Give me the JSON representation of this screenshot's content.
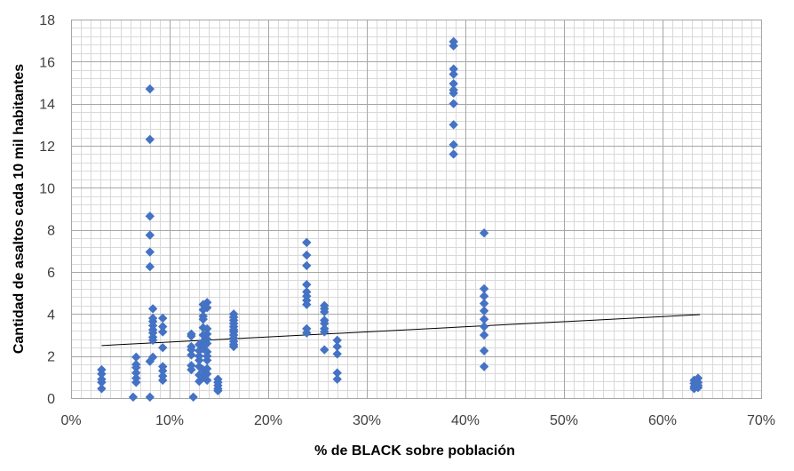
{
  "chart_data": {
    "type": "scatter",
    "title": "",
    "xlabel": "% de BLACK sobre población",
    "ylabel": "Cantidad de asaltos cada 10 mil habitantes",
    "xlim": [
      0,
      0.7
    ],
    "ylim": [
      0,
      18
    ],
    "x_ticks": [
      0,
      0.1,
      0.2,
      0.3,
      0.4,
      0.5,
      0.6,
      0.7
    ],
    "x_tick_labels": [
      "0%",
      "10%",
      "20%",
      "30%",
      "40%",
      "50%",
      "60%",
      "70%"
    ],
    "y_ticks": [
      0,
      2,
      4,
      6,
      8,
      10,
      12,
      14,
      16,
      18
    ],
    "y_tick_labels": [
      "0",
      "2",
      "4",
      "6",
      "8",
      "10",
      "12",
      "14",
      "16",
      "18"
    ],
    "grid": true,
    "legend": "none",
    "series": [
      {
        "marker": "diamond",
        "color": "#4472C4",
        "points": [
          [
            0.031,
            1.35
          ],
          [
            0.031,
            1.15
          ],
          [
            0.031,
            0.9
          ],
          [
            0.031,
            0.75
          ],
          [
            0.031,
            0.45
          ],
          [
            0.063,
            0.05
          ],
          [
            0.066,
            1.95
          ],
          [
            0.066,
            1.6
          ],
          [
            0.066,
            1.45
          ],
          [
            0.066,
            1.2
          ],
          [
            0.066,
            0.95
          ],
          [
            0.066,
            0.75
          ],
          [
            0.08,
            14.7
          ],
          [
            0.08,
            12.3
          ],
          [
            0.08,
            8.65
          ],
          [
            0.08,
            7.75
          ],
          [
            0.08,
            6.95
          ],
          [
            0.08,
            6.25
          ],
          [
            0.08,
            1.75
          ],
          [
            0.08,
            0.05
          ],
          [
            0.083,
            4.25
          ],
          [
            0.083,
            3.8
          ],
          [
            0.083,
            3.65
          ],
          [
            0.083,
            3.45
          ],
          [
            0.083,
            3.25
          ],
          [
            0.083,
            3.1
          ],
          [
            0.083,
            2.9
          ],
          [
            0.083,
            2.75
          ],
          [
            0.083,
            1.95
          ],
          [
            0.093,
            3.8
          ],
          [
            0.093,
            3.4
          ],
          [
            0.093,
            3.15
          ],
          [
            0.093,
            2.4
          ],
          [
            0.093,
            1.5
          ],
          [
            0.093,
            1.3
          ],
          [
            0.093,
            1.05
          ],
          [
            0.093,
            0.85
          ],
          [
            0.122,
            3.05
          ],
          [
            0.122,
            2.95
          ],
          [
            0.122,
            2.45
          ],
          [
            0.122,
            2.3
          ],
          [
            0.122,
            2.05
          ],
          [
            0.122,
            1.55
          ],
          [
            0.122,
            1.35
          ],
          [
            0.124,
            0.05
          ],
          [
            0.13,
            2.55
          ],
          [
            0.13,
            2.25
          ],
          [
            0.13,
            2.0
          ],
          [
            0.13,
            1.8
          ],
          [
            0.13,
            1.5
          ],
          [
            0.13,
            1.1
          ],
          [
            0.13,
            0.8
          ],
          [
            0.134,
            4.45
          ],
          [
            0.134,
            4.2
          ],
          [
            0.134,
            3.9
          ],
          [
            0.134,
            3.75
          ],
          [
            0.134,
            3.35
          ],
          [
            0.134,
            3.0
          ],
          [
            0.134,
            2.7
          ],
          [
            0.134,
            2.5
          ],
          [
            0.134,
            2.35
          ],
          [
            0.134,
            1.35
          ],
          [
            0.134,
            1.0
          ],
          [
            0.138,
            4.55
          ],
          [
            0.138,
            4.3
          ],
          [
            0.138,
            3.3
          ],
          [
            0.138,
            3.05
          ],
          [
            0.138,
            2.8
          ],
          [
            0.138,
            2.6
          ],
          [
            0.138,
            2.2
          ],
          [
            0.138,
            2.0
          ],
          [
            0.138,
            1.8
          ],
          [
            0.138,
            1.4
          ],
          [
            0.138,
            1.15
          ],
          [
            0.138,
            0.85
          ],
          [
            0.149,
            0.9
          ],
          [
            0.149,
            0.75
          ],
          [
            0.149,
            0.6
          ],
          [
            0.149,
            0.45
          ],
          [
            0.149,
            0.35
          ],
          [
            0.165,
            4.0
          ],
          [
            0.165,
            3.85
          ],
          [
            0.165,
            3.7
          ],
          [
            0.165,
            3.55
          ],
          [
            0.165,
            3.4
          ],
          [
            0.165,
            3.25
          ],
          [
            0.165,
            3.15
          ],
          [
            0.165,
            3.0
          ],
          [
            0.165,
            2.85
          ],
          [
            0.165,
            2.7
          ],
          [
            0.165,
            2.55
          ],
          [
            0.165,
            2.45
          ],
          [
            0.239,
            7.4
          ],
          [
            0.239,
            6.8
          ],
          [
            0.239,
            6.3
          ],
          [
            0.239,
            5.4
          ],
          [
            0.239,
            5.05
          ],
          [
            0.239,
            4.85
          ],
          [
            0.239,
            4.65
          ],
          [
            0.239,
            4.45
          ],
          [
            0.239,
            3.3
          ],
          [
            0.239,
            3.1
          ],
          [
            0.257,
            4.4
          ],
          [
            0.257,
            4.25
          ],
          [
            0.257,
            4.1
          ],
          [
            0.257,
            3.7
          ],
          [
            0.257,
            3.55
          ],
          [
            0.257,
            3.3
          ],
          [
            0.257,
            3.15
          ],
          [
            0.257,
            2.3
          ],
          [
            0.27,
            2.75
          ],
          [
            0.27,
            2.45
          ],
          [
            0.27,
            2.1
          ],
          [
            0.27,
            1.2
          ],
          [
            0.27,
            0.9
          ],
          [
            0.388,
            16.95
          ],
          [
            0.388,
            16.75
          ],
          [
            0.388,
            15.65
          ],
          [
            0.388,
            15.4
          ],
          [
            0.388,
            14.95
          ],
          [
            0.388,
            14.65
          ],
          [
            0.388,
            14.5
          ],
          [
            0.388,
            14.0
          ],
          [
            0.388,
            13.0
          ],
          [
            0.388,
            12.05
          ],
          [
            0.388,
            11.6
          ],
          [
            0.419,
            7.85
          ],
          [
            0.419,
            5.2
          ],
          [
            0.419,
            4.85
          ],
          [
            0.419,
            4.5
          ],
          [
            0.419,
            4.15
          ],
          [
            0.419,
            3.75
          ],
          [
            0.419,
            3.4
          ],
          [
            0.419,
            3.0
          ],
          [
            0.419,
            2.25
          ],
          [
            0.419,
            1.5
          ],
          [
            0.632,
            0.85
          ],
          [
            0.632,
            0.7
          ],
          [
            0.632,
            0.55
          ],
          [
            0.632,
            0.45
          ],
          [
            0.636,
            0.95
          ],
          [
            0.636,
            0.75
          ],
          [
            0.636,
            0.6
          ],
          [
            0.636,
            0.5
          ]
        ]
      }
    ],
    "trendline": {
      "type": "linear",
      "color": "#000000",
      "points": [
        [
          0.031,
          2.5
        ],
        [
          0.638,
          3.97
        ]
      ]
    }
  }
}
